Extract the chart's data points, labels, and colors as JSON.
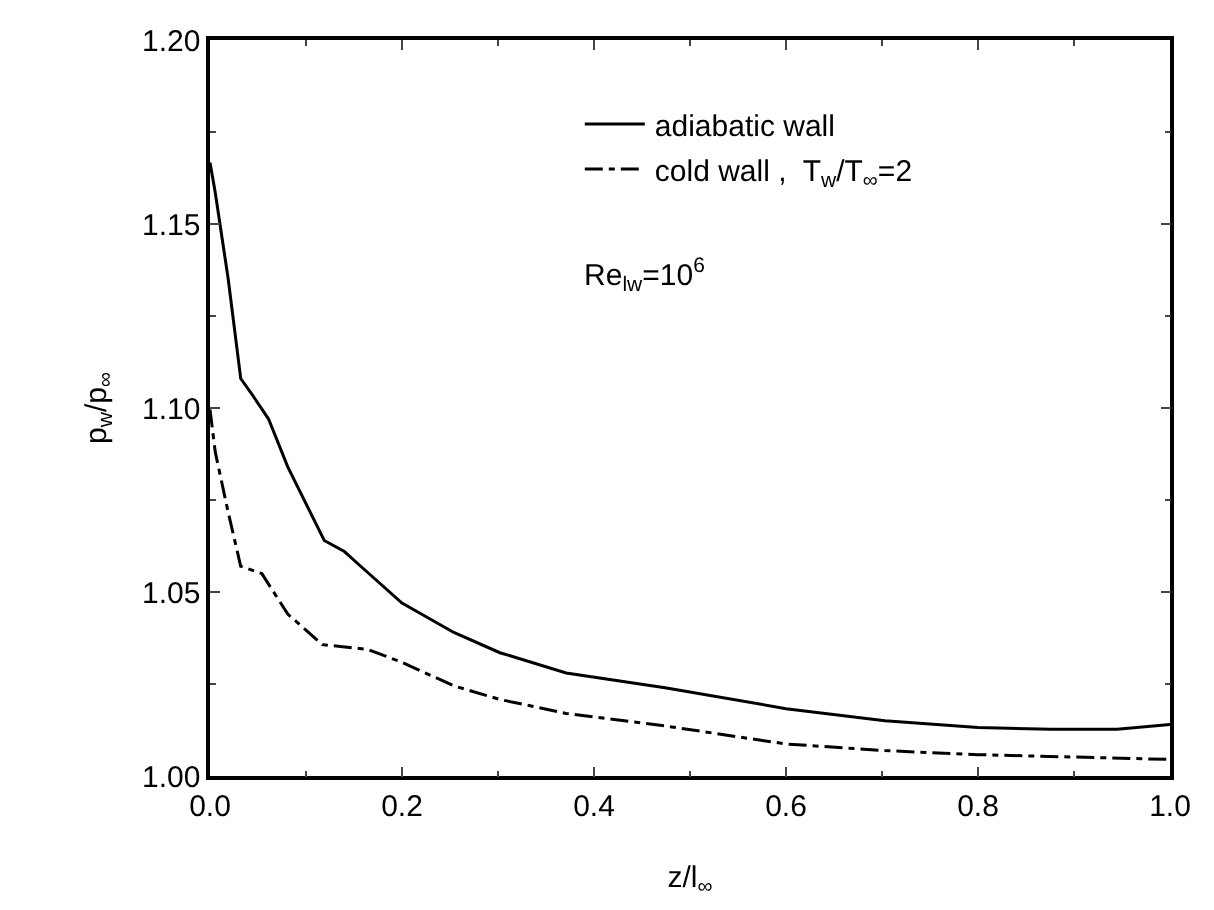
{
  "chart_data": {
    "type": "line",
    "xlabel": "z/l$_{∞}$",
    "ylabel": "p$_{w}$/p$_{∞}$",
    "series": [
      {
        "name": "adiabatic wall",
        "color": "#000000",
        "line_style": "solid",
        "x": [
          0,
          0.0055,
          0.019,
          0.032,
          0.043,
          0.061,
          0.081,
          0.119,
          0.14,
          0.157,
          0.2,
          0.254,
          0.302,
          0.371,
          0.474,
          0.6,
          0.703,
          0.8,
          0.876,
          0.945,
          1.0
        ],
        "values": [
          1.1667,
          1.1585,
          1.135,
          1.108,
          1.104,
          1.097,
          1.084,
          1.064,
          1.061,
          1.057,
          1.047,
          1.039,
          1.0335,
          1.028,
          1.024,
          1.0183,
          1.015,
          1.0132,
          1.0127,
          1.0127,
          1.014
        ]
      },
      {
        "name": "cold wall ,  T$_{w}$/T$_{∞}$=2",
        "color": "#000000",
        "line_style": "dashdot",
        "x": [
          0,
          0.0055,
          0.019,
          0.032,
          0.054,
          0.081,
          0.117,
          0.164,
          0.199,
          0.254,
          0.302,
          0.371,
          0.474,
          0.6,
          0.703,
          0.8,
          1.0
        ],
        "values": [
          1.0996,
          1.088,
          1.0716,
          1.057,
          1.055,
          1.044,
          1.0357,
          1.0344,
          1.031,
          1.0245,
          1.0208,
          1.017,
          1.0136,
          1.0087,
          1.0069,
          1.0058,
          1.0045
        ]
      }
    ],
    "annotations": [
      "Re$_{lw}$=10$^{6}$"
    ],
    "xlim": [
      0,
      1.0
    ],
    "xticks": [
      {
        "value": 0,
        "label": "0.0"
      },
      0.2,
      0.4,
      0.6,
      0.8,
      {
        "value": 1.0,
        "label": "1.0"
      }
    ],
    "ylim": [
      1.0,
      1.2
    ],
    "yticks": [
      {
        "value": 1.0,
        "label": "1.00"
      },
      1.05,
      {
        "value": 1.1,
        "label": "1.10"
      },
      1.15,
      {
        "value": 1.2,
        "label": "1.20"
      }
    ],
    "legend": "top right",
    "marker": "none"
  }
}
